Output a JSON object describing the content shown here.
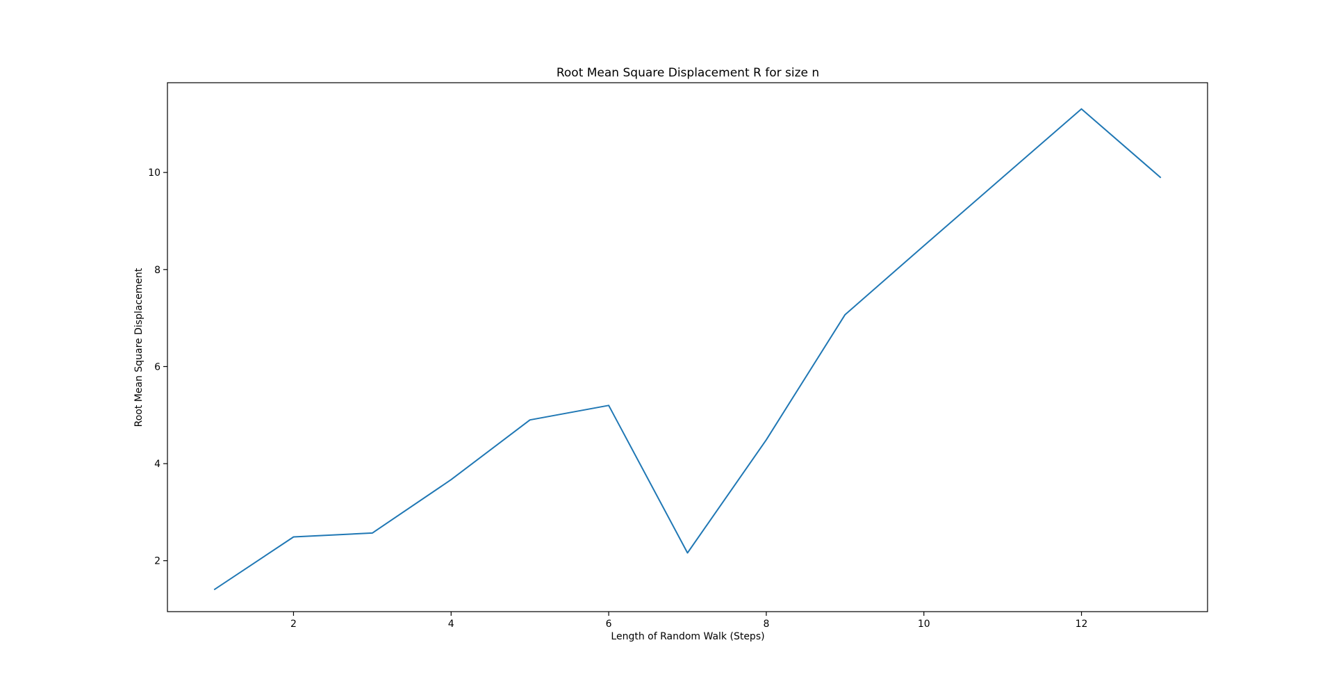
{
  "chart_data": {
    "type": "line",
    "title": "Root Mean Square Displacement R for size n",
    "xlabel": "Length of Random Walk (Steps)",
    "ylabel": "Root Mean Square Displacement",
    "x": [
      1,
      2,
      3,
      4,
      5,
      6,
      7,
      8,
      9,
      10,
      11,
      12,
      13
    ],
    "series": [
      {
        "values": [
          1.41,
          2.49,
          2.57,
          3.67,
          4.9,
          5.2,
          2.16,
          4.49,
          7.07,
          8.49,
          9.9,
          11.31,
          9.9
        ],
        "color": "#1f77b4"
      }
    ],
    "xlim": [
      0.4,
      13.6
    ],
    "ylim": [
      0.95,
      11.85
    ],
    "xticks": [
      2,
      4,
      6,
      8,
      10,
      12
    ],
    "yticks": [
      2,
      4,
      6,
      8,
      10
    ],
    "grid": false,
    "legend": false
  }
}
